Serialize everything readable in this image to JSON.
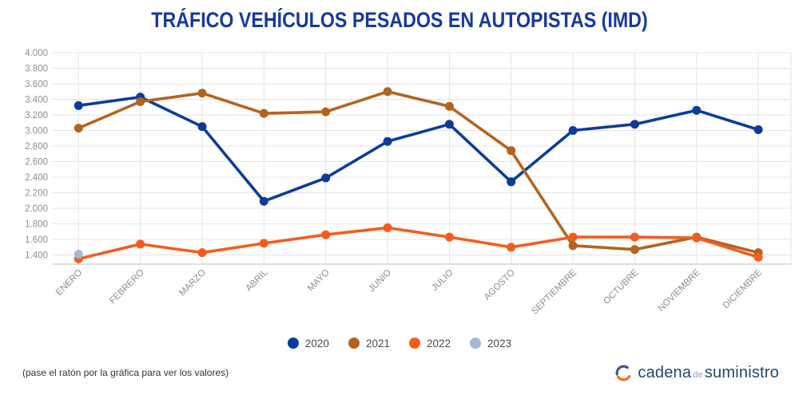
{
  "title": "TRÁFICO VEHÍCULOS PESADOS EN AUTOPISTAS (IMD)",
  "footer_note": "(pase el ratón por la gráfica para ver los valores)",
  "brand": {
    "cadena": "cadena",
    "de": "de",
    "suministro": "suministro"
  },
  "colors": {
    "title": "#16399d",
    "grid": "#e3e3e3",
    "axis_line": "#cccccc",
    "tick_label": "#8d8d8d",
    "legend_text": "#4a4a4a",
    "brand_navy": "#24456e",
    "brand_orange": "#ee7120"
  },
  "chart_data": {
    "type": "line",
    "title": "TRÁFICO VEHÍCULOS PESADOS EN AUTOPISTAS (IMD)",
    "categories": [
      "ENERO",
      "FEBRERO",
      "MARZO",
      "ABRIL",
      "MAYO",
      "JUNIO",
      "JULIO",
      "AGOSTO",
      "SEPTIEMBRE",
      "OCTUBRE",
      "NOVIEMBRE",
      "DICIEMBRE"
    ],
    "series": [
      {
        "name": "2020",
        "color": "#0b3c9b",
        "values": [
          3320,
          3430,
          3050,
          2090,
          2390,
          2860,
          3080,
          2340,
          3000,
          3080,
          3260,
          3010
        ]
      },
      {
        "name": "2021",
        "color": "#b2641f",
        "values": [
          3030,
          3370,
          3480,
          3220,
          3240,
          3500,
          3310,
          2740,
          1520,
          1470,
          1630,
          1430
        ]
      },
      {
        "name": "2022",
        "color": "#f55c1c",
        "values": [
          1350,
          1540,
          1430,
          1550,
          1660,
          1750,
          1630,
          1500,
          1630,
          1630,
          1620,
          1370
        ]
      },
      {
        "name": "2023",
        "color": "#a6b5d8",
        "values": [
          1410,
          null,
          null,
          null,
          null,
          null,
          null,
          null,
          null,
          null,
          null,
          null
        ]
      }
    ],
    "yticks": {
      "values": [
        4000,
        3800,
        3600,
        3400,
        3200,
        3000,
        2800,
        2600,
        2400,
        2200,
        2000,
        1800,
        1600,
        1400
      ],
      "labels": [
        "4.000",
        "3.800",
        "3.600",
        "3.400",
        "3.200",
        "3.000",
        "2.800",
        "2.600",
        "2.400",
        "2.200",
        "2.000",
        "1.800",
        "1.600",
        "1.400"
      ]
    },
    "ylim": [
      1300,
      4000
    ],
    "grid": true,
    "legend_position": "bottom"
  }
}
